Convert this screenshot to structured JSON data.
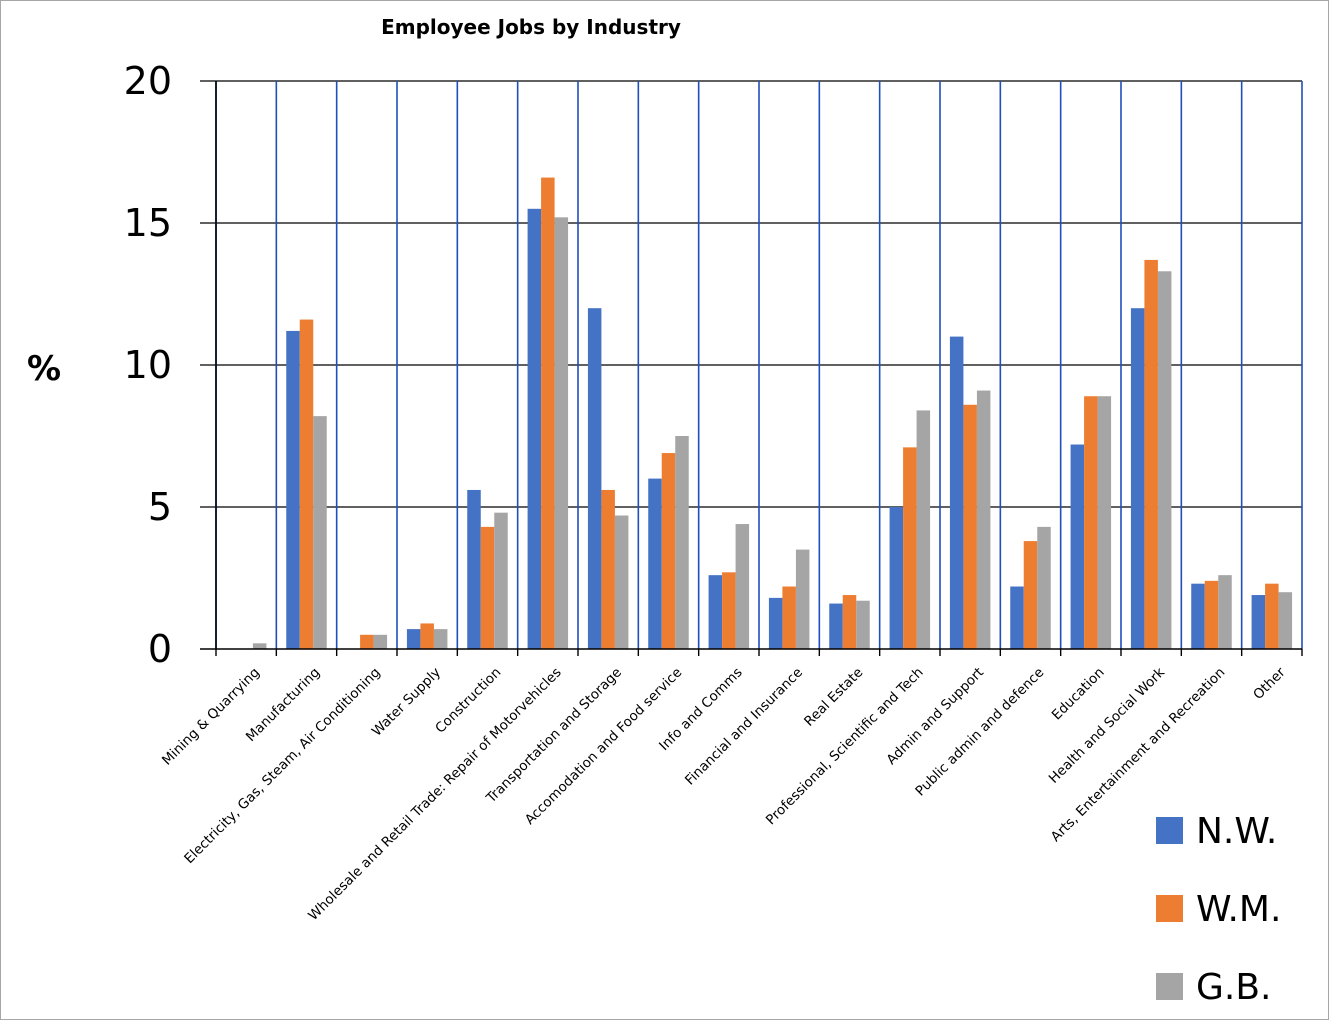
{
  "chart_data": {
    "type": "bar",
    "title": "Employee Jobs by Industry",
    "xlabel": "",
    "ylabel": "%",
    "ylim": [
      0,
      20
    ],
    "yticks": [
      0,
      5,
      10,
      15,
      20
    ],
    "grid": true,
    "legend_position": "bottom-right",
    "categories": [
      "Mining & Quarrying",
      "Manufacturing",
      "Electricity, Gas, Steam, Air Conditioning",
      "Water Supply",
      "Construction",
      "Wholesale and Retail Trade: Repair of Motorvehicles",
      "Transportation and Storage",
      "Accomodation and Food service",
      "Info and Comms",
      "Financial and Insurance",
      "Real Estate",
      "Professional, Scientific and Tech",
      "Admin and Support",
      "Public admin and defence",
      "Education",
      "Health and Social Work",
      "Arts, Entertainment and Recreation",
      "Other"
    ],
    "series": [
      {
        "name": "N.W.",
        "color": "#4472c4",
        "values": [
          0,
          11.2,
          0,
          0.7,
          5.6,
          15.5,
          12,
          6,
          2.6,
          1.8,
          1.6,
          5,
          11,
          2.2,
          7.2,
          12,
          2.3,
          1.9
        ]
      },
      {
        "name": "W.M.",
        "color": "#ed7d31",
        "values": [
          0,
          11.6,
          0.5,
          0.9,
          4.3,
          16.6,
          5.6,
          6.9,
          2.7,
          2.2,
          1.9,
          7.1,
          8.6,
          3.8,
          8.9,
          13.7,
          2.4,
          2.3
        ]
      },
      {
        "name": "G.B.",
        "color": "#a5a5a5",
        "values": [
          0.2,
          8.2,
          0.5,
          0.7,
          4.8,
          15.2,
          4.7,
          7.5,
          4.4,
          3.5,
          1.7,
          8.4,
          9.1,
          4.3,
          8.9,
          13.3,
          2.6,
          2.0
        ]
      }
    ]
  }
}
